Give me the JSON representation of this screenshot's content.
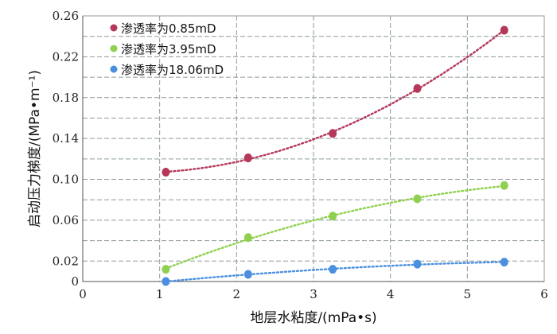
{
  "chart_data": {
    "type": "scatter",
    "xlabel": "地层水粘度/(mPa•s)",
    "ylabel": "启动压力梯度/(MPa•m⁻¹)",
    "xlim": [
      0,
      6
    ],
    "ylim": [
      0,
      0.26
    ],
    "x_ticks": [
      "0",
      "1",
      "2",
      "3",
      "4",
      "5",
      "6"
    ],
    "y_ticks": [
      "0",
      "0.02",
      "0.06",
      "0.10",
      "0.14",
      "0.18",
      "0.22",
      "0.26"
    ],
    "y_tick_values": [
      0,
      0.02,
      0.06,
      0.1,
      0.14,
      0.18,
      0.22,
      0.26
    ],
    "grid": true,
    "legend_position": "top-left",
    "series": [
      {
        "name": "渗透率为0.85mD",
        "color": "#b5385a",
        "x": [
          1.08,
          2.15,
          3.25,
          4.35,
          5.48
        ],
        "y": [
          0.107,
          0.121,
          0.145,
          0.189,
          0.246
        ]
      },
      {
        "name": "渗透率为3.95mD",
        "color": "#8fd14f",
        "x": [
          1.08,
          2.15,
          3.25,
          4.35,
          5.48
        ],
        "y": [
          0.012,
          0.043,
          0.064,
          0.081,
          0.094
        ]
      },
      {
        "name": "渗透率为18.06mD",
        "color": "#4a8fe0",
        "x": [
          1.08,
          2.15,
          3.25,
          4.35,
          5.48
        ],
        "y": [
          0.0,
          0.007,
          0.012,
          0.017,
          0.019
        ]
      }
    ]
  }
}
